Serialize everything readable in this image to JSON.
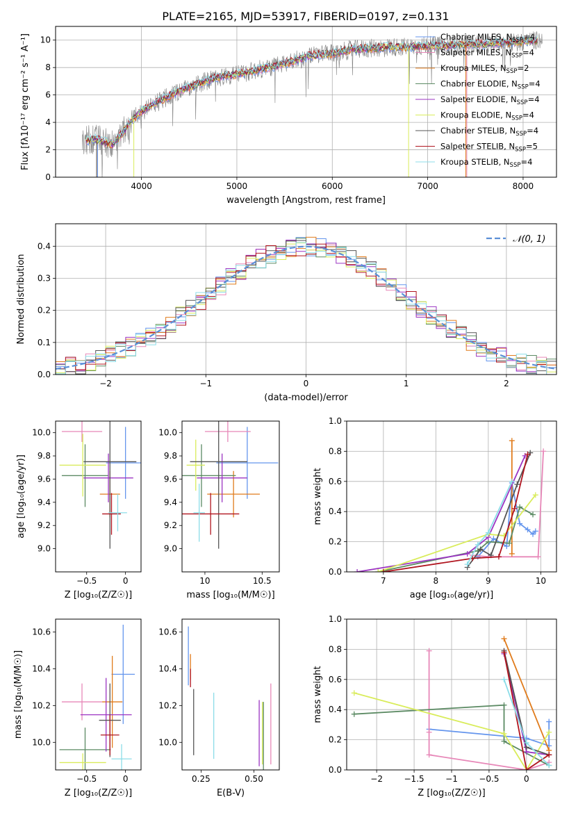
{
  "figure_title": "PLATE=2165, MJD=53917, FIBERID=0197, z=0.131",
  "colors": {
    "Chabrier MILES": "#6495ed",
    "Salpeter MILES": "#e787b8",
    "Kroupa MILES": "#e07b1b",
    "Chabrier ELODIE": "#5b8a63",
    "Salpeter ELODIE": "#9b34c2",
    "Kroupa ELODIE": "#d9ec5a",
    "Chabrier STELIB": "#555555",
    "Salpeter STELIB": "#b0141e",
    "Kroupa STELIB": "#8cdde8",
    "data": "#808080",
    "normal": "#5b8fd6"
  },
  "legend_spectrum": [
    {
      "name": "Chabrier MILES",
      "nssp": "4"
    },
    {
      "name": "Salpeter MILES",
      "nssp": "4"
    },
    {
      "name": "Kroupa MILES",
      "nssp": "2"
    },
    {
      "name": "Chabrier ELODIE",
      "nssp": "4"
    },
    {
      "name": "Salpeter ELODIE",
      "nssp": "4"
    },
    {
      "name": "Kroupa ELODIE",
      "nssp": "4"
    },
    {
      "name": "Chabrier STELIB",
      "nssp": "4"
    },
    {
      "name": "Salpeter STELIB",
      "nssp": "5"
    },
    {
      "name": "Kroupa STELIB",
      "nssp": "4"
    }
  ],
  "chart_data": [
    {
      "id": "spectrum",
      "type": "line",
      "xlabel": "wavelength [Angstrom, rest frame]",
      "ylabel": "Flux [fλ10⁻¹⁷ erg cm⁻² s⁻¹ A⁻¹]",
      "xlim": [
        3100,
        8350
      ],
      "ylim": [
        0,
        11
      ],
      "xticks": [
        4000,
        5000,
        6000,
        7000,
        8000
      ],
      "yticks": [
        0,
        2,
        4,
        6,
        8,
        10
      ],
      "continuum": {
        "x": [
          3400,
          3500,
          3600,
          3700,
          3800,
          3900,
          4000,
          4200,
          4400,
          4600,
          4800,
          5000,
          5200,
          5400,
          5600,
          5800,
          6000,
          6200,
          6400,
          6600,
          6800,
          7000,
          7200,
          7400,
          7600,
          7800,
          8000,
          8200
        ],
        "y": [
          2.6,
          2.8,
          2.6,
          2.4,
          3.2,
          4.2,
          4.8,
          5.6,
          6.3,
          6.8,
          7.3,
          7.5,
          7.8,
          8.1,
          8.5,
          8.9,
          9.0,
          9.3,
          9.4,
          9.5,
          9.5,
          9.6,
          9.6,
          9.7,
          9.7,
          9.8,
          9.9,
          10.0
        ]
      },
      "grid": true
    },
    {
      "id": "residuals",
      "type": "step",
      "xlabel": "(data-model)/error",
      "ylabel": "Normed distribution",
      "xlim": [
        -2.5,
        2.5
      ],
      "ylim": [
        0,
        0.47
      ],
      "xticks": [
        -2,
        -1,
        0,
        1,
        2
      ],
      "yticks": [
        0.0,
        0.1,
        0.2,
        0.3,
        0.4
      ],
      "legend": "𝒩(0, 1)",
      "legend_position": "top-right",
      "bin_width": 0.1,
      "grid": true
    },
    {
      "id": "age_vs_Z",
      "type": "errorbar",
      "xlabel": "Z [log₁₀(Z/Z☉)]",
      "ylabel": "age  [log₁₀(age/yr)]",
      "xlim": [
        -0.9,
        0.2
      ],
      "ylim": [
        8.8,
        10.1
      ],
      "xticks": [
        -0.5,
        0.0
      ],
      "yticks": [
        9.0,
        9.2,
        9.4,
        9.6,
        9.8,
        10.0
      ],
      "points": [
        {
          "series": "Chabrier MILES",
          "x": 0.0,
          "xerr": 0.25,
          "y": 9.74,
          "yerr": 0.31
        },
        {
          "series": "Salpeter MILES",
          "x": -0.56,
          "xerr": 0.26,
          "y": 10.01,
          "yerr": 0.09
        },
        {
          "series": "Kroupa MILES",
          "x": -0.2,
          "xerr": 0.13,
          "y": 9.47,
          "yerr": 0.2
        },
        {
          "series": "Chabrier ELODIE",
          "x": -0.52,
          "xerr": 0.3,
          "y": 9.63,
          "yerr": 0.27
        },
        {
          "series": "Salpeter ELODIE",
          "x": -0.22,
          "xerr": 0.32,
          "y": 9.61,
          "yerr": 0.21
        },
        {
          "series": "Kroupa ELODIE",
          "x": -0.55,
          "xerr": 0.3,
          "y": 9.72,
          "yerr": 0.27
        },
        {
          "series": "Chabrier STELIB",
          "x": -0.2,
          "xerr": 0.34,
          "y": 9.75,
          "yerr": 0.75
        },
        {
          "series": "Salpeter STELIB",
          "x": -0.18,
          "xerr": 0.12,
          "y": 9.3,
          "yerr": 0.18
        },
        {
          "series": "Kroupa STELIB",
          "x": -0.1,
          "xerr": 0.12,
          "y": 9.31,
          "yerr": 0.16
        }
      ]
    },
    {
      "id": "age_vs_mass",
      "type": "errorbar",
      "xlabel": "mass [log₁₀(M/M☉)]",
      "ylabel": "",
      "xlim": [
        9.8,
        10.65
      ],
      "ylim": [
        8.8,
        10.1
      ],
      "xticks": [
        10.0,
        10.5
      ],
      "yticks": [
        9.0,
        9.2,
        9.4,
        9.6,
        9.8,
        10.0
      ],
      "points": [
        {
          "series": "Chabrier MILES",
          "x": 10.37,
          "xerr": 0.27,
          "y": 9.74,
          "yerr": 0.31
        },
        {
          "series": "Salpeter MILES",
          "x": 10.2,
          "xerr": 0.2,
          "y": 10.01,
          "yerr": 0.09
        },
        {
          "series": "Kroupa MILES",
          "x": 10.25,
          "xerr": 0.23,
          "y": 9.47,
          "yerr": 0.2
        },
        {
          "series": "Chabrier ELODIE",
          "x": 9.97,
          "xerr": 0.3,
          "y": 9.63,
          "yerr": 0.27
        },
        {
          "series": "Salpeter ELODIE",
          "x": 10.15,
          "xerr": 0.22,
          "y": 9.61,
          "yerr": 0.21
        },
        {
          "series": "Kroupa ELODIE",
          "x": 9.92,
          "xerr": 0.08,
          "y": 9.72,
          "yerr": 0.22
        },
        {
          "series": "Chabrier STELIB",
          "x": 10.12,
          "xerr": 0.25,
          "y": 9.75,
          "yerr": 0.75
        },
        {
          "series": "Salpeter STELIB",
          "x": 10.05,
          "xerr": 0.25,
          "y": 9.3,
          "yerr": 0.18
        },
        {
          "series": "Kroupa STELIB",
          "x": 9.95,
          "xerr": 0.05,
          "y": 9.31,
          "yerr": 0.25
        }
      ]
    },
    {
      "id": "weight_vs_age",
      "type": "line",
      "xlabel": "age  [log₁₀(age/yr)]",
      "ylabel": "mass weight",
      "xlim": [
        6.3,
        10.3
      ],
      "ylim": [
        0.0,
        1.0
      ],
      "xticks": [
        7,
        8,
        9,
        10
      ],
      "yticks": [
        0.0,
        0.2,
        0.4,
        0.6,
        0.8,
        1.0
      ],
      "series": [
        {
          "name": "Chabrier MILES",
          "x": [
            8.8,
            9.1,
            9.35,
            9.45,
            9.6,
            9.75,
            9.85,
            9.9
          ],
          "y": [
            0.1,
            0.22,
            0.17,
            0.59,
            0.32,
            0.28,
            0.25,
            0.27
          ]
        },
        {
          "name": "Salpeter MILES",
          "x": [
            8.7,
            9.0,
            9.95,
            10.05
          ],
          "y": [
            0.11,
            0.1,
            0.1,
            0.8
          ]
        },
        {
          "name": "Kroupa MILES",
          "x": [
            9.45,
            9.45
          ],
          "y": [
            0.12,
            0.87
          ]
        },
        {
          "name": "Chabrier ELODIE",
          "x": [
            6.9,
            8.8,
            9.0,
            9.4,
            9.6,
            9.85
          ],
          "y": [
            0.0,
            0.14,
            0.2,
            0.19,
            0.43,
            0.38
          ]
        },
        {
          "name": "Salpeter ELODIE",
          "x": [
            6.5,
            8.6,
            9.0,
            9.7
          ],
          "y": [
            0.0,
            0.12,
            0.23,
            0.77
          ]
        },
        {
          "name": "Kroupa ELODIE",
          "x": [
            6.9,
            9.0,
            9.3,
            9.9
          ],
          "y": [
            0.0,
            0.25,
            0.24,
            0.51
          ]
        },
        {
          "name": "Chabrier STELIB",
          "x": [
            8.6,
            8.85,
            9.05,
            9.55,
            9.8
          ],
          "y": [
            0.03,
            0.15,
            0.11,
            0.58,
            0.79
          ]
        },
        {
          "name": "Salpeter STELIB",
          "x": [
            7.0,
            8.7,
            9.2,
            9.5,
            9.75
          ],
          "y": [
            0.0,
            0.09,
            0.1,
            0.42,
            0.78
          ]
        },
        {
          "name": "Kroupa STELIB",
          "x": [
            8.6,
            8.8,
            9.0,
            9.45
          ],
          "y": [
            0.05,
            0.18,
            0.26,
            0.6
          ]
        }
      ],
      "grid": true
    },
    {
      "id": "mass_vs_Z",
      "type": "errorbar",
      "xlabel": "Z [log₁₀(Z/Z☉)]",
      "ylabel": "mass [log₁₀(M/M☉)]",
      "xlim": [
        -0.9,
        0.2
      ],
      "ylim": [
        9.85,
        10.67
      ],
      "xticks": [
        -0.5,
        0.0
      ],
      "yticks": [
        10.0,
        10.2,
        10.4,
        10.6
      ],
      "points": [
        {
          "series": "Chabrier MILES",
          "x": -0.03,
          "xerr": 0.15,
          "y": 10.37,
          "yerr": 0.27
        },
        {
          "series": "Salpeter MILES",
          "x": -0.56,
          "xerr": 0.26,
          "y": 10.22,
          "yerr": 0.1
        },
        {
          "series": "Kroupa MILES",
          "x": -0.17,
          "xerr": 0.13,
          "y": 10.22,
          "yerr": 0.25
        },
        {
          "series": "Chabrier ELODIE",
          "x": -0.52,
          "xerr": 0.33,
          "y": 9.96,
          "yerr": 0.12
        },
        {
          "series": "Salpeter ELODIE",
          "x": -0.25,
          "xerr": 0.33,
          "y": 10.15,
          "yerr": 0.2
        },
        {
          "series": "Kroupa ELODIE",
          "x": -0.55,
          "xerr": 0.3,
          "y": 9.89,
          "yerr": 0.05
        },
        {
          "series": "Chabrier STELIB",
          "x": -0.2,
          "xerr": 0.14,
          "y": 10.12,
          "yerr": 0.2
        },
        {
          "series": "Salpeter STELIB",
          "x": -0.2,
          "xerr": 0.12,
          "y": 10.04,
          "yerr": 0.11
        },
        {
          "series": "Kroupa STELIB",
          "x": -0.05,
          "xerr": 0.13,
          "y": 9.91,
          "yerr": 0.08
        }
      ]
    },
    {
      "id": "mass_vs_EBV",
      "type": "errorbar",
      "xlabel": "E(B-V)",
      "ylabel": "",
      "xlim": [
        0.16,
        0.62
      ],
      "ylim": [
        9.85,
        10.67
      ],
      "xticks": [
        0.25,
        0.5
      ],
      "yticks": [
        10.0,
        10.2,
        10.4,
        10.6
      ],
      "points": [
        {
          "series": "Chabrier MILES",
          "x": 0.19,
          "y": 10.47,
          "yerr": 0.16
        },
        {
          "series": "Salpeter MILES",
          "x": 0.58,
          "y": 10.1,
          "yerr": 0.22
        },
        {
          "series": "Kroupa MILES",
          "x": 0.2,
          "y": 10.41,
          "yerr": 0.07
        },
        {
          "series": "Chabrier ELODIE",
          "x": 0.545,
          "y": 10.03,
          "yerr": 0.19
        },
        {
          "series": "Salpeter ELODIE",
          "x": 0.525,
          "y": 10.05,
          "yerr": 0.18
        },
        {
          "series": "Kroupa ELODIE",
          "x": 0.54,
          "y": 10.05,
          "yerr": 0.17
        },
        {
          "series": "Chabrier STELIB",
          "x": 0.215,
          "y": 10.11,
          "yerr": 0.18
        },
        {
          "series": "Salpeter STELIB",
          "x": 0.2,
          "y": 10.35,
          "yerr": 0.05
        },
        {
          "series": "Kroupa STELIB",
          "x": 0.31,
          "y": 10.09,
          "yerr": 0.18
        }
      ]
    },
    {
      "id": "weight_vs_Z",
      "type": "line",
      "xlabel": "Z [log₁₀(Z/Z☉)]",
      "ylabel": "mass weight",
      "xlim": [
        -2.4,
        0.4
      ],
      "ylim": [
        0.0,
        1.0
      ],
      "xticks": [
        -2.0,
        -1.5,
        -1.0,
        -0.5,
        0.0
      ],
      "yticks": [
        0.0,
        0.2,
        0.4,
        0.6,
        0.8,
        1.0
      ],
      "series": [
        {
          "name": "Chabrier MILES",
          "x": [
            -1.3,
            0.0,
            0.3,
            0.3
          ],
          "y": [
            0.27,
            0.21,
            0.16,
            0.32
          ]
        },
        {
          "name": "Salpeter MILES",
          "x": [
            -1.3,
            -1.3,
            -1.3,
            0.0,
            0.3
          ],
          "y": [
            0.79,
            0.25,
            0.1,
            0.0,
            0.05
          ]
        },
        {
          "name": "Kroupa MILES",
          "x": [
            -0.3,
            0.3
          ],
          "y": [
            0.87,
            0.13
          ]
        },
        {
          "name": "Chabrier ELODIE",
          "x": [
            -2.3,
            -0.3,
            -0.3,
            0.3
          ],
          "y": [
            0.37,
            0.43,
            0.19,
            0.03
          ]
        },
        {
          "name": "Salpeter ELODIE",
          "x": [
            -0.3,
            0.0,
            0.3
          ],
          "y": [
            0.77,
            0.12,
            0.1
          ]
        },
        {
          "name": "Kroupa ELODIE",
          "x": [
            -2.3,
            -0.3,
            0.0,
            0.3
          ],
          "y": [
            0.51,
            0.24,
            0.0,
            0.25
          ]
        },
        {
          "name": "Chabrier STELIB",
          "x": [
            -0.3,
            0.0,
            0.3
          ],
          "y": [
            0.79,
            0.15,
            0.1
          ]
        },
        {
          "name": "Salpeter STELIB",
          "x": [
            -0.3,
            0.0,
            0.3
          ],
          "y": [
            0.78,
            0.0,
            0.1
          ]
        },
        {
          "name": "Kroupa STELIB",
          "x": [
            -0.3,
            0.0,
            0.3
          ],
          "y": [
            0.6,
            0.18,
            0.03
          ]
        }
      ],
      "grid": true
    }
  ]
}
